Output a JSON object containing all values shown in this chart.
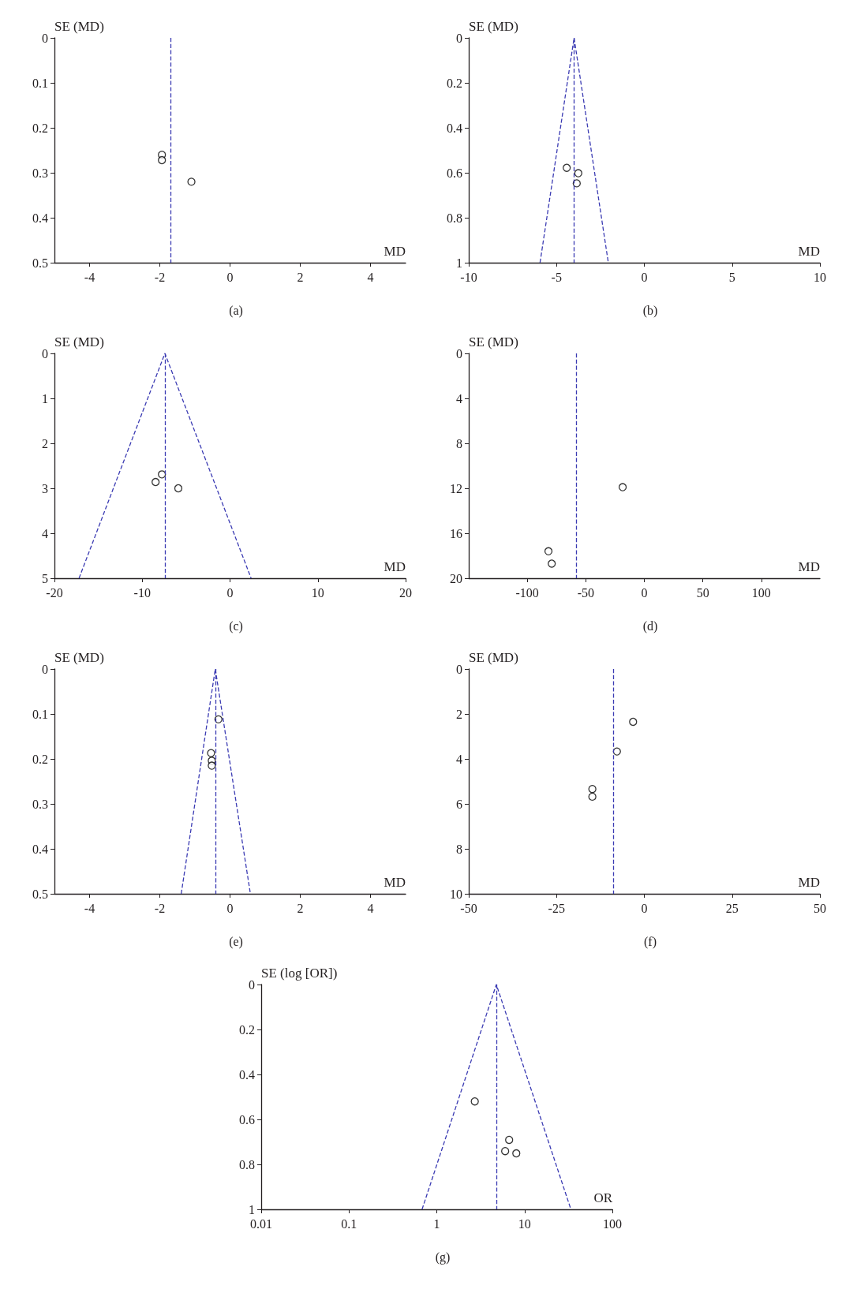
{
  "chart_data": [
    {
      "type": "scatter",
      "title": "(a)",
      "xlabel": "MD",
      "ylabel": "SE (MD)",
      "xlim": [
        -5,
        5
      ],
      "xticks": [
        -4,
        -2,
        0,
        2,
        4
      ],
      "ylim": [
        0.5,
        0
      ],
      "yticks": [
        0,
        0.1,
        0.2,
        0.3,
        0.4,
        0.5
      ],
      "grid": false,
      "marker": "circle",
      "series": [
        {
          "color": "#000000",
          "x": [
            -1.94,
            -1.94,
            -1.1
          ],
          "values": [
            0.26,
            0.272,
            0.32
          ]
        }
      ],
      "ref_lines": [
        {
          "axis": "x",
          "value": -1.68,
          "color": "#3b3bb3",
          "line_style": "dashed"
        }
      ]
    },
    {
      "type": "scatter",
      "title": "(b)",
      "xlabel": "MD",
      "ylabel": "SE (MD)",
      "xlim": [
        -10,
        10
      ],
      "xticks": [
        -10,
        -5,
        0,
        5,
        10
      ],
      "ylim": [
        1,
        0
      ],
      "yticks": [
        0,
        0.2,
        0.4,
        0.6,
        0.8,
        1
      ],
      "grid": false,
      "marker": "circle",
      "series": [
        {
          "color": "#000000",
          "x": [
            -4.42,
            -3.76,
            -3.85
          ],
          "values": [
            0.578,
            0.602,
            0.647
          ]
        },
        {
          "type": "line",
          "color": "#3b3bb3",
          "line_style": "dashed",
          "marker": "none",
          "x": [
            -5.94,
            -4,
            -2.05
          ],
          "values": [
            1,
            0,
            1
          ]
        }
      ],
      "ref_lines": [
        {
          "axis": "x",
          "value": -4,
          "color": "#3b3bb3",
          "line_style": "dashed"
        }
      ]
    },
    {
      "type": "scatter",
      "title": "(c)",
      "xlabel": "MD",
      "ylabel": "SE (MD)",
      "xlim": [
        -20,
        20
      ],
      "xticks": [
        -20,
        -10,
        0,
        10,
        20
      ],
      "ylim": [
        5,
        0
      ],
      "yticks": [
        0,
        1,
        2,
        3,
        4,
        5
      ],
      "grid": false,
      "marker": "circle",
      "series": [
        {
          "color": "#000000",
          "x": [
            -7.76,
            -8.48,
            -5.89
          ],
          "values": [
            2.69,
            2.86,
            3.0
          ]
        },
        {
          "type": "line",
          "color": "#3b3bb3",
          "line_style": "dashed",
          "marker": "none",
          "x": [
            -17.2,
            -7.42,
            2.4
          ],
          "values": [
            5,
            0,
            5
          ]
        }
      ],
      "ref_lines": [
        {
          "axis": "x",
          "value": -7.42,
          "color": "#3b3bb3",
          "line_style": "dashed"
        }
      ]
    },
    {
      "type": "scatter",
      "title": "(d)",
      "xlabel": "MD",
      "ylabel": "SE (MD)",
      "xlim": [
        -150,
        150
      ],
      "xticks": [
        -100,
        -50,
        0,
        50,
        100
      ],
      "ylim": [
        20,
        0
      ],
      "yticks": [
        0,
        4,
        8,
        12,
        16,
        20
      ],
      "grid": false,
      "marker": "circle",
      "series": [
        {
          "color": "#000000",
          "x": [
            -18.5,
            -81.9,
            -79.1
          ],
          "values": [
            11.9,
            17.6,
            18.7
          ]
        }
      ],
      "ref_lines": [
        {
          "axis": "x",
          "value": -58,
          "color": "#3b3bb3",
          "line_style": "dashed"
        }
      ]
    },
    {
      "type": "scatter",
      "title": "(e)",
      "xlabel": "MD",
      "ylabel": "SE (MD)",
      "xlim": [
        -5,
        5
      ],
      "xticks": [
        -4,
        -2,
        0,
        2,
        4
      ],
      "ylim": [
        0.5,
        0
      ],
      "yticks": [
        0,
        0.1,
        0.2,
        0.3,
        0.4,
        0.5
      ],
      "grid": false,
      "marker": "circle",
      "series": [
        {
          "color": "#000000",
          "x": [
            -0.33,
            -0.54,
            -0.52,
            -0.52
          ],
          "values": [
            0.112,
            0.187,
            0.204,
            0.215
          ]
        },
        {
          "type": "line",
          "color": "#3b3bb3",
          "line_style": "dashed",
          "marker": "none",
          "x": [
            -1.39,
            -0.42,
            0.58
          ],
          "values": [
            0.5,
            0,
            0.5
          ]
        }
      ],
      "ref_lines": [
        {
          "axis": "x",
          "value": -0.42,
          "color": "#3b3bb3",
          "line_style": "dashed"
        }
      ]
    },
    {
      "type": "scatter",
      "title": "(f)",
      "xlabel": "MD",
      "ylabel": "SE (MD)",
      "xlim": [
        -50,
        50
      ],
      "xticks": [
        -50,
        -25,
        0,
        25,
        50
      ],
      "ylim": [
        10,
        0
      ],
      "yticks": [
        0,
        2,
        4,
        6,
        8,
        10
      ],
      "grid": false,
      "marker": "circle",
      "series": [
        {
          "color": "#000000",
          "x": [
            -3.2,
            -7.8,
            -14.8,
            -14.8
          ],
          "values": [
            2.35,
            3.67,
            5.34,
            5.68
          ]
        }
      ],
      "ref_lines": [
        {
          "axis": "x",
          "value": -8.8,
          "color": "#3b3bb3",
          "line_style": "dashed"
        }
      ]
    },
    {
      "type": "scatter",
      "title": "(g)",
      "xlabel": "OR",
      "ylabel": "SE (log [OR])",
      "log": "x",
      "xlim": [
        0.01,
        100
      ],
      "xticks": [
        0.01,
        0.1,
        1,
        10,
        100
      ],
      "ylim": [
        1,
        0
      ],
      "yticks": [
        0,
        0.2,
        0.4,
        0.6,
        0.8,
        1
      ],
      "grid": false,
      "marker": "circle",
      "series": [
        {
          "color": "#000000",
          "x": [
            2.71,
            6.67,
            6.01,
            8.05
          ],
          "values": [
            0.52,
            0.691,
            0.741,
            0.751
          ]
        },
        {
          "type": "line",
          "color": "#3b3bb3",
          "line_style": "dashed",
          "marker": "none",
          "x": [
            0.68,
            4.77,
            33.7
          ],
          "values": [
            1,
            0,
            1
          ]
        }
      ],
      "ref_lines": [
        {
          "axis": "x",
          "value": 4.77,
          "color": "#3b3bb3",
          "line_style": "dashed"
        }
      ]
    }
  ]
}
